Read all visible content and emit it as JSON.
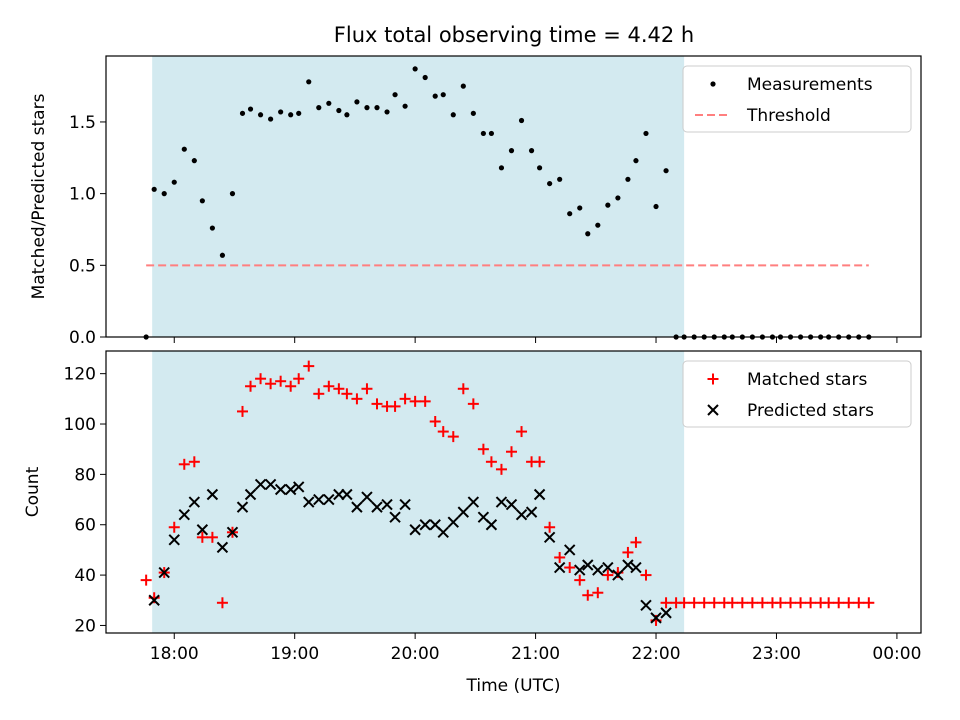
{
  "figure": {
    "title": "Flux total observing time = 4.42 h"
  },
  "chart_data": [
    {
      "type": "scatter",
      "panel": "top",
      "title": "Flux total observing time = 4.42 h",
      "xlabel": "",
      "ylabel": "Matched/Predicted stars",
      "xlim": [
        "17:26",
        "00:12"
      ],
      "ylim": [
        0,
        1.96
      ],
      "yticks": [
        0.0,
        0.5,
        1.0,
        1.5
      ],
      "ytick_labels": [
        "0.0",
        "0.5",
        "1.0",
        "1.5"
      ],
      "xticks": [
        "18:00",
        "19:00",
        "20:00",
        "21:00",
        "22:00",
        "23:00",
        "00:00"
      ],
      "observing_window": {
        "start": "17:49",
        "end": "22:14",
        "color": "#d3eaf0"
      },
      "legend": {
        "position": "top-right",
        "entries": [
          "Measurements",
          "Threshold"
        ]
      },
      "series": [
        {
          "name": "Measurements",
          "style": "dot",
          "color": "#000000",
          "points": [
            [
              "17:46",
              0.0
            ],
            [
              "17:50",
              1.03
            ],
            [
              "17:55",
              1.0
            ],
            [
              "18:00",
              1.08
            ],
            [
              "18:05",
              1.31
            ],
            [
              "18:10",
              1.23
            ],
            [
              "18:14",
              0.95
            ],
            [
              "18:19",
              0.76
            ],
            [
              "18:24",
              0.57
            ],
            [
              "18:29",
              1.0
            ],
            [
              "18:34",
              1.56
            ],
            [
              "18:38",
              1.59
            ],
            [
              "18:43",
              1.55
            ],
            [
              "18:48",
              1.52
            ],
            [
              "18:53",
              1.57
            ],
            [
              "18:58",
              1.55
            ],
            [
              "19:02",
              1.56
            ],
            [
              "19:07",
              1.78
            ],
            [
              "19:12",
              1.6
            ],
            [
              "19:17",
              1.63
            ],
            [
              "19:22",
              1.58
            ],
            [
              "19:26",
              1.55
            ],
            [
              "19:31",
              1.64
            ],
            [
              "19:36",
              1.6
            ],
            [
              "19:41",
              1.6
            ],
            [
              "19:46",
              1.57
            ],
            [
              "19:50",
              1.69
            ],
            [
              "19:55",
              1.61
            ],
            [
              "20:00",
              1.87
            ],
            [
              "20:05",
              1.81
            ],
            [
              "20:10",
              1.68
            ],
            [
              "20:14",
              1.69
            ],
            [
              "20:19",
              1.55
            ],
            [
              "20:24",
              1.75
            ],
            [
              "20:29",
              1.56
            ],
            [
              "20:34",
              1.42
            ],
            [
              "20:38",
              1.42
            ],
            [
              "20:43",
              1.18
            ],
            [
              "20:48",
              1.3
            ],
            [
              "20:53",
              1.51
            ],
            [
              "20:58",
              1.3
            ],
            [
              "21:02",
              1.18
            ],
            [
              "21:07",
              1.07
            ],
            [
              "21:12",
              1.1
            ],
            [
              "21:17",
              0.86
            ],
            [
              "21:22",
              0.9
            ],
            [
              "21:26",
              0.72
            ],
            [
              "21:31",
              0.78
            ],
            [
              "21:36",
              0.92
            ],
            [
              "21:41",
              0.97
            ],
            [
              "21:46",
              1.1
            ],
            [
              "21:50",
              1.23
            ],
            [
              "21:55",
              1.42
            ],
            [
              "22:00",
              0.91
            ],
            [
              "22:05",
              1.16
            ],
            [
              "22:10",
              0.0
            ],
            [
              "22:14",
              0.0
            ],
            [
              "22:19",
              0.0
            ],
            [
              "22:24",
              0.0
            ],
            [
              "22:29",
              0.0
            ],
            [
              "22:34",
              0.0
            ],
            [
              "22:38",
              0.0
            ],
            [
              "22:43",
              0.0
            ],
            [
              "22:48",
              0.0
            ],
            [
              "22:53",
              0.0
            ],
            [
              "22:58",
              0.0
            ],
            [
              "23:02",
              0.0
            ],
            [
              "23:07",
              0.0
            ],
            [
              "23:12",
              0.0
            ],
            [
              "23:17",
              0.0
            ],
            [
              "23:22",
              0.0
            ],
            [
              "23:26",
              0.0
            ],
            [
              "23:31",
              0.0
            ],
            [
              "23:36",
              0.0
            ],
            [
              "23:41",
              0.0
            ],
            [
              "23:46",
              0.0
            ]
          ]
        },
        {
          "name": "Threshold",
          "style": "dashed-line",
          "color": "#ff7f7f",
          "points": [
            [
              "17:46",
              0.5
            ],
            [
              "23:46",
              0.5
            ]
          ]
        }
      ]
    },
    {
      "type": "scatter",
      "panel": "bottom",
      "xlabel": "Time (UTC)",
      "ylabel": "Count",
      "xlim": [
        "17:26",
        "00:12"
      ],
      "ylim": [
        17,
        129
      ],
      "yticks": [
        20,
        40,
        60,
        80,
        100,
        120
      ],
      "ytick_labels": [
        "20",
        "40",
        "60",
        "80",
        "100",
        "120"
      ],
      "xticks": [
        "18:00",
        "19:00",
        "20:00",
        "21:00",
        "22:00",
        "23:00",
        "00:00"
      ],
      "xtick_labels": [
        "18:00",
        "19:00",
        "20:00",
        "21:00",
        "22:00",
        "23:00",
        "00:00"
      ],
      "observing_window": {
        "start": "17:49",
        "end": "22:14",
        "color": "#d3eaf0"
      },
      "legend": {
        "position": "top-right",
        "entries": [
          "Matched stars",
          "Predicted stars"
        ]
      },
      "series": [
        {
          "name": "Matched stars",
          "marker": "plus",
          "color": "#ff0000",
          "points": [
            [
              "17:46",
              38
            ],
            [
              "17:50",
              31
            ],
            [
              "17:55",
              41
            ],
            [
              "18:00",
              59
            ],
            [
              "18:05",
              84
            ],
            [
              "18:10",
              85
            ],
            [
              "18:14",
              55
            ],
            [
              "18:19",
              55
            ],
            [
              "18:24",
              29
            ],
            [
              "18:29",
              57
            ],
            [
              "18:34",
              105
            ],
            [
              "18:38",
              115
            ],
            [
              "18:43",
              118
            ],
            [
              "18:48",
              116
            ],
            [
              "18:53",
              117
            ],
            [
              "18:58",
              115
            ],
            [
              "19:02",
              118
            ],
            [
              "19:07",
              123
            ],
            [
              "19:12",
              112
            ],
            [
              "19:17",
              115
            ],
            [
              "19:22",
              114
            ],
            [
              "19:26",
              112
            ],
            [
              "19:31",
              110
            ],
            [
              "19:36",
              114
            ],
            [
              "19:41",
              108
            ],
            [
              "19:46",
              107
            ],
            [
              "19:50",
              107
            ],
            [
              "19:55",
              110
            ],
            [
              "20:00",
              109
            ],
            [
              "20:05",
              109
            ],
            [
              "20:10",
              101
            ],
            [
              "20:14",
              97
            ],
            [
              "20:19",
              95
            ],
            [
              "20:24",
              114
            ],
            [
              "20:29",
              108
            ],
            [
              "20:34",
              90
            ],
            [
              "20:38",
              85
            ],
            [
              "20:43",
              82
            ],
            [
              "20:48",
              89
            ],
            [
              "20:53",
              97
            ],
            [
              "20:58",
              85
            ],
            [
              "21:02",
              85
            ],
            [
              "21:07",
              59
            ],
            [
              "21:12",
              47
            ],
            [
              "21:17",
              43
            ],
            [
              "21:22",
              38
            ],
            [
              "21:26",
              32
            ],
            [
              "21:31",
              33
            ],
            [
              "21:36",
              40
            ],
            [
              "21:41",
              41
            ],
            [
              "21:46",
              49
            ],
            [
              "21:50",
              53
            ],
            [
              "21:55",
              40
            ],
            [
              "22:00",
              22
            ],
            [
              "22:05",
              29
            ],
            [
              "22:10",
              29
            ],
            [
              "22:14",
              29
            ],
            [
              "22:19",
              29
            ],
            [
              "22:24",
              29
            ],
            [
              "22:29",
              29
            ],
            [
              "22:34",
              29
            ],
            [
              "22:38",
              29
            ],
            [
              "22:43",
              29
            ],
            [
              "22:48",
              29
            ],
            [
              "22:53",
              29
            ],
            [
              "22:58",
              29
            ],
            [
              "23:02",
              29
            ],
            [
              "23:07",
              29
            ],
            [
              "23:12",
              29
            ],
            [
              "23:17",
              29
            ],
            [
              "23:22",
              29
            ],
            [
              "23:26",
              29
            ],
            [
              "23:31",
              29
            ],
            [
              "23:36",
              29
            ],
            [
              "23:41",
              29
            ],
            [
              "23:46",
              29
            ]
          ]
        },
        {
          "name": "Predicted stars",
          "marker": "x",
          "color": "#000000",
          "points": [
            [
              "17:50",
              30
            ],
            [
              "17:55",
              41
            ],
            [
              "18:00",
              54
            ],
            [
              "18:05",
              64
            ],
            [
              "18:10",
              69
            ],
            [
              "18:14",
              58
            ],
            [
              "18:19",
              72
            ],
            [
              "18:24",
              51
            ],
            [
              "18:29",
              57
            ],
            [
              "18:34",
              67
            ],
            [
              "18:38",
              72
            ],
            [
              "18:43",
              76
            ],
            [
              "18:48",
              76
            ],
            [
              "18:53",
              74
            ],
            [
              "18:58",
              74
            ],
            [
              "19:02",
              75
            ],
            [
              "19:07",
              69
            ],
            [
              "19:12",
              70
            ],
            [
              "19:17",
              70
            ],
            [
              "19:22",
              72
            ],
            [
              "19:26",
              72
            ],
            [
              "19:31",
              67
            ],
            [
              "19:36",
              71
            ],
            [
              "19:41",
              67
            ],
            [
              "19:46",
              68
            ],
            [
              "19:50",
              63
            ],
            [
              "19:55",
              68
            ],
            [
              "20:00",
              58
            ],
            [
              "20:05",
              60
            ],
            [
              "20:10",
              60
            ],
            [
              "20:14",
              57
            ],
            [
              "20:19",
              61
            ],
            [
              "20:24",
              65
            ],
            [
              "20:29",
              69
            ],
            [
              "20:34",
              63
            ],
            [
              "20:38",
              60
            ],
            [
              "20:43",
              69
            ],
            [
              "20:48",
              68
            ],
            [
              "20:53",
              64
            ],
            [
              "20:58",
              65
            ],
            [
              "21:02",
              72
            ],
            [
              "21:07",
              55
            ],
            [
              "21:12",
              43
            ],
            [
              "21:17",
              50
            ],
            [
              "21:22",
              42
            ],
            [
              "21:26",
              44
            ],
            [
              "21:31",
              42
            ],
            [
              "21:36",
              43
            ],
            [
              "21:41",
              40
            ],
            [
              "21:46",
              44
            ],
            [
              "21:50",
              43
            ],
            [
              "21:55",
              28
            ],
            [
              "22:00",
              23
            ],
            [
              "22:05",
              25
            ]
          ]
        }
      ]
    }
  ]
}
